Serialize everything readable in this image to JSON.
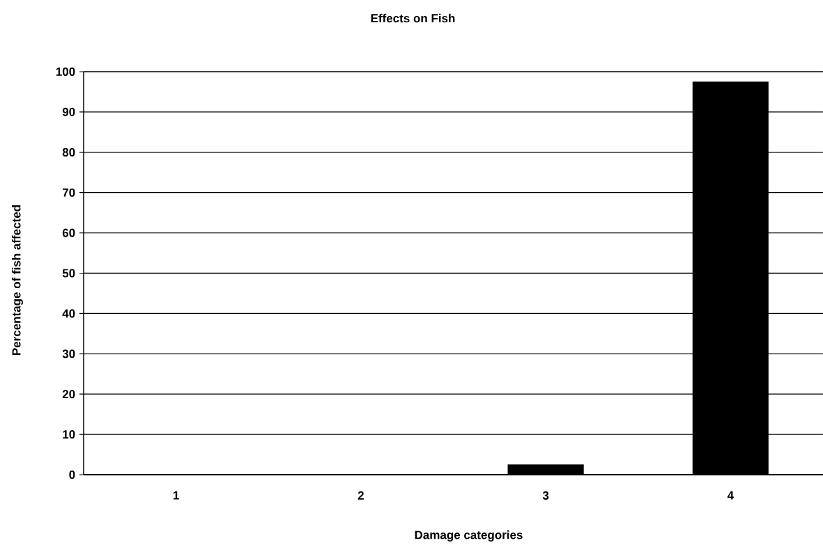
{
  "chart_data": {
    "type": "bar",
    "title": "Effects on Fish",
    "xlabel": "Damage categories",
    "ylabel": "Percentage of fish affected",
    "categories": [
      "1",
      "2",
      "3",
      "4"
    ],
    "values": [
      0,
      0,
      2.5,
      97.5
    ],
    "color": "#000000",
    "ylim": [
      0,
      100
    ],
    "yticks": [
      0,
      10,
      20,
      30,
      40,
      50,
      60,
      70,
      80,
      90,
      100
    ],
    "grid": "y"
  }
}
